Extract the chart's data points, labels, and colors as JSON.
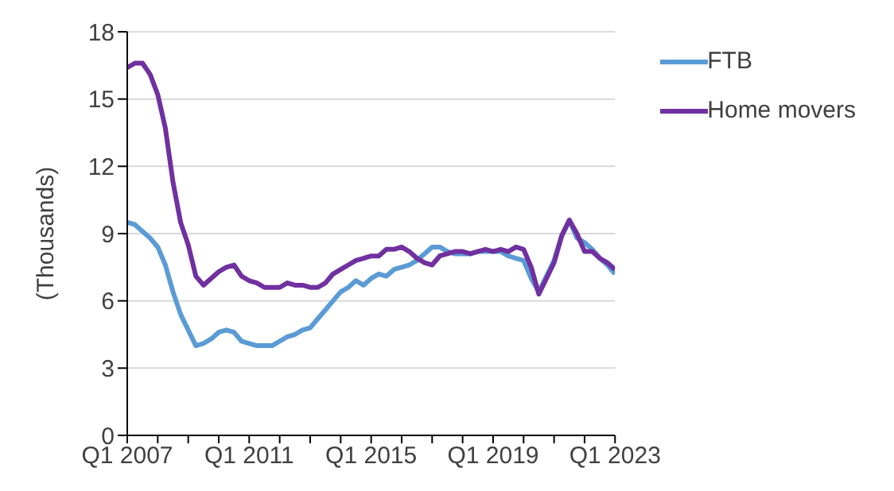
{
  "chart_data": {
    "type": "line",
    "ylabel": "(Thousands)",
    "categories": [
      "Q1 2007",
      null,
      null,
      null,
      null,
      null,
      null,
      null,
      null,
      null,
      null,
      null,
      null,
      null,
      null,
      null,
      "Q1 2011",
      null,
      null,
      null,
      null,
      null,
      null,
      null,
      null,
      null,
      null,
      null,
      null,
      null,
      null,
      null,
      "Q1 2015",
      null,
      null,
      null,
      null,
      null,
      null,
      null,
      null,
      null,
      null,
      null,
      null,
      null,
      null,
      null,
      "Q1 2019",
      null,
      null,
      null,
      null,
      null,
      null,
      null,
      null,
      null,
      null,
      null,
      null,
      null,
      null,
      null,
      "Q1 2023"
    ],
    "series": [
      {
        "name": "FTB",
        "color": "#5b9bd5",
        "values": [
          9.5,
          9.4,
          9.1,
          8.8,
          8.4,
          7.6,
          6.4,
          5.4,
          4.7,
          4.0,
          4.1,
          4.3,
          4.6,
          4.7,
          4.6,
          4.2,
          4.1,
          4.0,
          4.0,
          4.0,
          4.2,
          4.4,
          4.5,
          4.7,
          4.8,
          5.2,
          5.6,
          6.0,
          6.4,
          6.6,
          6.9,
          6.7,
          7.0,
          7.2,
          7.1,
          7.4,
          7.5,
          7.6,
          7.8,
          8.1,
          8.4,
          8.4,
          8.2,
          8.1,
          8.1,
          8.1,
          8.2,
          8.2,
          8.2,
          8.2,
          8.0,
          7.9,
          7.8,
          7.0,
          6.4,
          7.1,
          7.8,
          8.9,
          9.6,
          8.8,
          8.6,
          8.3,
          7.9,
          7.6,
          7.2
        ]
      },
      {
        "name": "Home movers",
        "color": "#7030a0",
        "values": [
          16.4,
          16.6,
          16.6,
          16.1,
          15.2,
          13.7,
          11.3,
          9.5,
          8.5,
          7.1,
          6.7,
          7.0,
          7.3,
          7.5,
          7.6,
          7.1,
          6.9,
          6.8,
          6.6,
          6.6,
          6.6,
          6.8,
          6.7,
          6.7,
          6.6,
          6.6,
          6.8,
          7.2,
          7.4,
          7.6,
          7.8,
          7.9,
          8.0,
          8.0,
          8.3,
          8.3,
          8.4,
          8.2,
          7.9,
          7.7,
          7.6,
          8.0,
          8.1,
          8.2,
          8.2,
          8.1,
          8.2,
          8.3,
          8.2,
          8.3,
          8.2,
          8.4,
          8.3,
          7.5,
          6.3,
          7.0,
          7.7,
          8.9,
          9.6,
          9.0,
          8.2,
          8.2,
          7.9,
          7.7,
          7.4
        ]
      }
    ],
    "ylim": [
      0,
      18
    ],
    "yticks": [
      0,
      3,
      6,
      9,
      12,
      15,
      18
    ],
    "grid": "y",
    "legend": "top right",
    "marker": "none",
    "line_style": "solid"
  }
}
